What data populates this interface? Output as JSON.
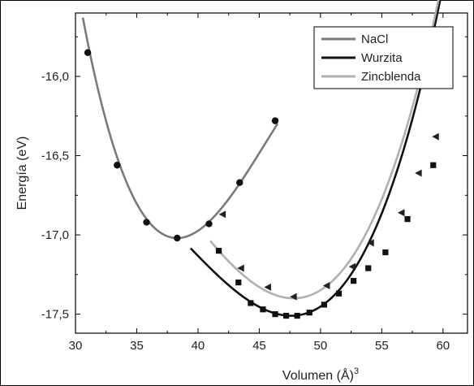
{
  "chart_data": {
    "type": "line",
    "title": "",
    "xlabel": "Volumen (Å)",
    "xlabel_superscript": "3",
    "ylabel": "Energía (eV)",
    "xlim": [
      30,
      62
    ],
    "ylim": [
      -17.62,
      -15.6
    ],
    "xticks": [
      30,
      35,
      40,
      45,
      50,
      55,
      60
    ],
    "yticks": [
      -17.5,
      -17.0,
      -16.5,
      -16.0
    ],
    "xtick_labels": [
      "30",
      "35",
      "40",
      "45",
      "50",
      "55",
      "60"
    ],
    "ytick_labels": [
      "-17,5",
      "-17,0",
      "-16,5",
      "-16,0"
    ],
    "legend_position": "top-right",
    "grid": false,
    "series": [
      {
        "name": "NaCl",
        "color": "#7a7a7a",
        "marker": "circle",
        "points": [
          [
            31.0,
            -15.85
          ],
          [
            33.4,
            -16.56
          ],
          [
            35.8,
            -16.92
          ],
          [
            38.3,
            -17.02
          ],
          [
            40.9,
            -16.93
          ],
          [
            43.4,
            -16.67
          ],
          [
            46.3,
            -16.28
          ]
        ],
        "fit": {
          "x0": 38.3,
          "e0": -17.02,
          "a": 0.0173,
          "b": -0.0008,
          "range": [
            30.6,
            46.5
          ]
        }
      },
      {
        "name": "Wurzita",
        "color": "#111111",
        "marker": "square",
        "points": [
          [
            41.7,
            -17.1
          ],
          [
            43.3,
            -17.3
          ],
          [
            44.3,
            -17.43
          ],
          [
            45.3,
            -17.47
          ],
          [
            46.3,
            -17.5
          ],
          [
            47.2,
            -17.51
          ],
          [
            48.1,
            -17.51
          ],
          [
            49.1,
            -17.49
          ],
          [
            50.3,
            -17.44
          ],
          [
            51.5,
            -17.37
          ],
          [
            52.7,
            -17.29
          ],
          [
            53.9,
            -17.21
          ],
          [
            55.3,
            -17.11
          ],
          [
            57.1,
            -16.9
          ],
          [
            59.2,
            -16.56
          ]
        ],
        "fit": {
          "x0": 47.6,
          "e0": -17.51,
          "a": 0.0092,
          "b": 0.00035,
          "range": [
            39.4,
            61.0
          ]
        }
      },
      {
        "name": "Zincblenda",
        "color": "#b0b0b0",
        "marker": "triangle-left",
        "points": [
          [
            42.0,
            -16.87
          ],
          [
            43.5,
            -17.21
          ],
          [
            45.7,
            -17.33
          ],
          [
            47.8,
            -17.39
          ],
          [
            50.5,
            -17.32
          ],
          [
            52.6,
            -17.2
          ],
          [
            54.1,
            -17.05
          ],
          [
            56.6,
            -16.86
          ],
          [
            58.0,
            -16.61
          ],
          [
            59.4,
            -16.38
          ]
        ],
        "fit": {
          "x0": 47.8,
          "e0": -17.4,
          "a": 0.0099,
          "b": 0.0003,
          "range": [
            41.0,
            60.8
          ]
        }
      }
    ]
  }
}
